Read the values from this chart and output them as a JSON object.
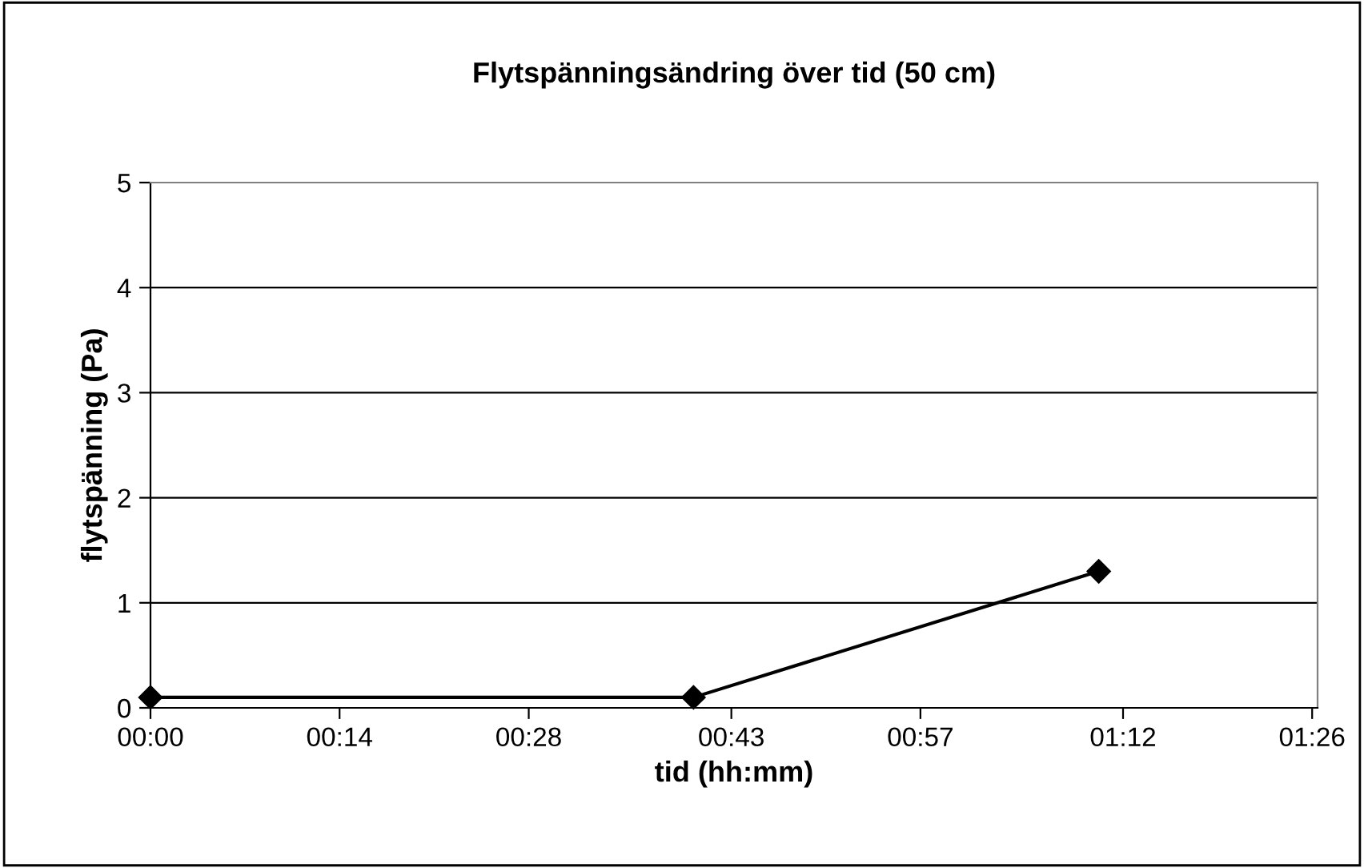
{
  "chart_data": {
    "type": "line",
    "title": "Flytspänningsändring över tid (50 cm)",
    "xlabel": "tid (hh:mm)",
    "ylabel": "flytspänning (Pa)",
    "x": [
      0,
      0.67,
      1.17
    ],
    "series": [
      {
        "color": "#000000",
        "values": [
          0.1,
          0.1,
          1.3
        ]
      }
    ],
    "xlim": [
      0,
      1.44
    ],
    "xticks": [
      {
        "value": 0,
        "label": "00:00"
      },
      {
        "value": 0.2333,
        "label": "00:14"
      },
      {
        "value": 0.4667,
        "label": "00:28"
      },
      {
        "value": 0.7167,
        "label": "00:43"
      },
      {
        "value": 0.95,
        "label": "00:57"
      },
      {
        "value": 1.2,
        "label": "01:12"
      },
      {
        "value": 1.4333,
        "label": "01:26"
      }
    ],
    "ylim": [
      0,
      5
    ],
    "yticks": [
      0,
      1,
      2,
      3,
      4,
      5
    ],
    "grid": "y",
    "marker": "diamond",
    "line_style": "solid"
  }
}
